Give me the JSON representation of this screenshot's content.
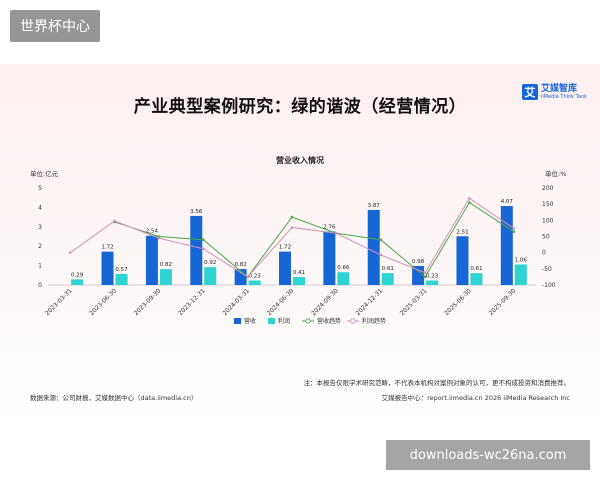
{
  "watermark_top": "世界杯中心",
  "watermark_bottom": "downloads-wc26na.com",
  "header": {
    "title": "产业典型案例研究：绿的谐波（经营情况）",
    "logo_name": "艾媒智库",
    "logo_en": "iiMedia Think Tank",
    "logo_mark": "艾"
  },
  "chart_data": {
    "type": "bar",
    "title": "营业收入情况",
    "y_left_label": "单位:亿元",
    "y_right_label": "单位:%",
    "ylim_left": [
      0,
      5
    ],
    "ylim_right": [
      -100,
      200
    ],
    "yticks_left": [
      "0",
      "1",
      "2",
      "3",
      "4",
      "5"
    ],
    "yticks_right": [
      "-100",
      "-50",
      "0",
      "50",
      "100",
      "150",
      "200"
    ],
    "categories": [
      "2023-03-31",
      "2023-06-30",
      "2023-09-30",
      "2023-12-31",
      "2024-03-31",
      "2024-06-30",
      "2024-09-30",
      "2024-12-31",
      "2025-03-31",
      "2025-06-30",
      "2025-09-30"
    ],
    "series": [
      {
        "name": "营收",
        "type": "bar",
        "color": "#1766d6",
        "values": [
          null,
          1.72,
          2.54,
          3.56,
          0.82,
          1.72,
          2.76,
          3.87,
          0.98,
          2.51,
          4.07
        ],
        "labels": [
          "",
          "1.72",
          "2.54",
          "3.56",
          "0.82",
          "1.72",
          "2.76",
          "3.87",
          "0.98",
          "2.51",
          "4.07"
        ]
      },
      {
        "name": "利润",
        "type": "bar",
        "color": "#2ed3d3",
        "values": [
          0.29,
          0.57,
          0.82,
          0.92,
          0.23,
          0.41,
          0.66,
          0.61,
          0.23,
          0.61,
          1.06
        ],
        "labels": [
          "0.29",
          "0.57",
          "0.82",
          "0.92",
          "0.23",
          "0.41",
          "0.66",
          "0.61",
          "0.23",
          "0.61",
          "1.06"
        ]
      },
      {
        "name": "营收趋势",
        "type": "line",
        "color": "#4aa84a",
        "values": [
          null,
          95,
          50,
          40,
          -75,
          110,
          60,
          40,
          -75,
          155,
          65
        ]
      },
      {
        "name": "利润趋势",
        "type": "line",
        "color": "#d590b5",
        "values": [
          0,
          98,
          45,
          12,
          -75,
          78,
          60,
          -7,
          -62,
          168,
          75
        ]
      }
    ],
    "legend_position": "bottom"
  },
  "note": "注：本报告仅限学术研究范畴，不代表本机构对案例对象的认可，更不构成投资和消费推荐。",
  "source": "数据来源：公司财报，艾媒数据中心（data.iimedia.cn）",
  "footer_right": "艾媒报告中心：report.iimedia.cn   2026 iiMedia Research Inc"
}
